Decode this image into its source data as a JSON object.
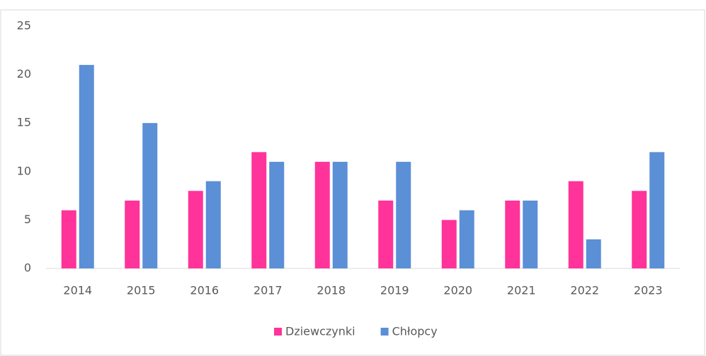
{
  "chart_data": {
    "type": "bar",
    "categories": [
      "2014",
      "2015",
      "2016",
      "2017",
      "2018",
      "2019",
      "2020",
      "2021",
      "2022",
      "2023"
    ],
    "series": [
      {
        "name": "Dziewczynki",
        "color": "#ff3399",
        "values": [
          6,
          7,
          8,
          12,
          11,
          7,
          5,
          7,
          9,
          8
        ]
      },
      {
        "name": "Chłopcy",
        "color": "#5b8fd6",
        "values": [
          21,
          15,
          9,
          11,
          11,
          11,
          6,
          7,
          3,
          12
        ]
      }
    ],
    "ylim": [
      0,
      25
    ],
    "yticks": [
      0,
      5,
      10,
      15,
      20,
      25
    ],
    "grid": false,
    "legend": "bottom"
  }
}
